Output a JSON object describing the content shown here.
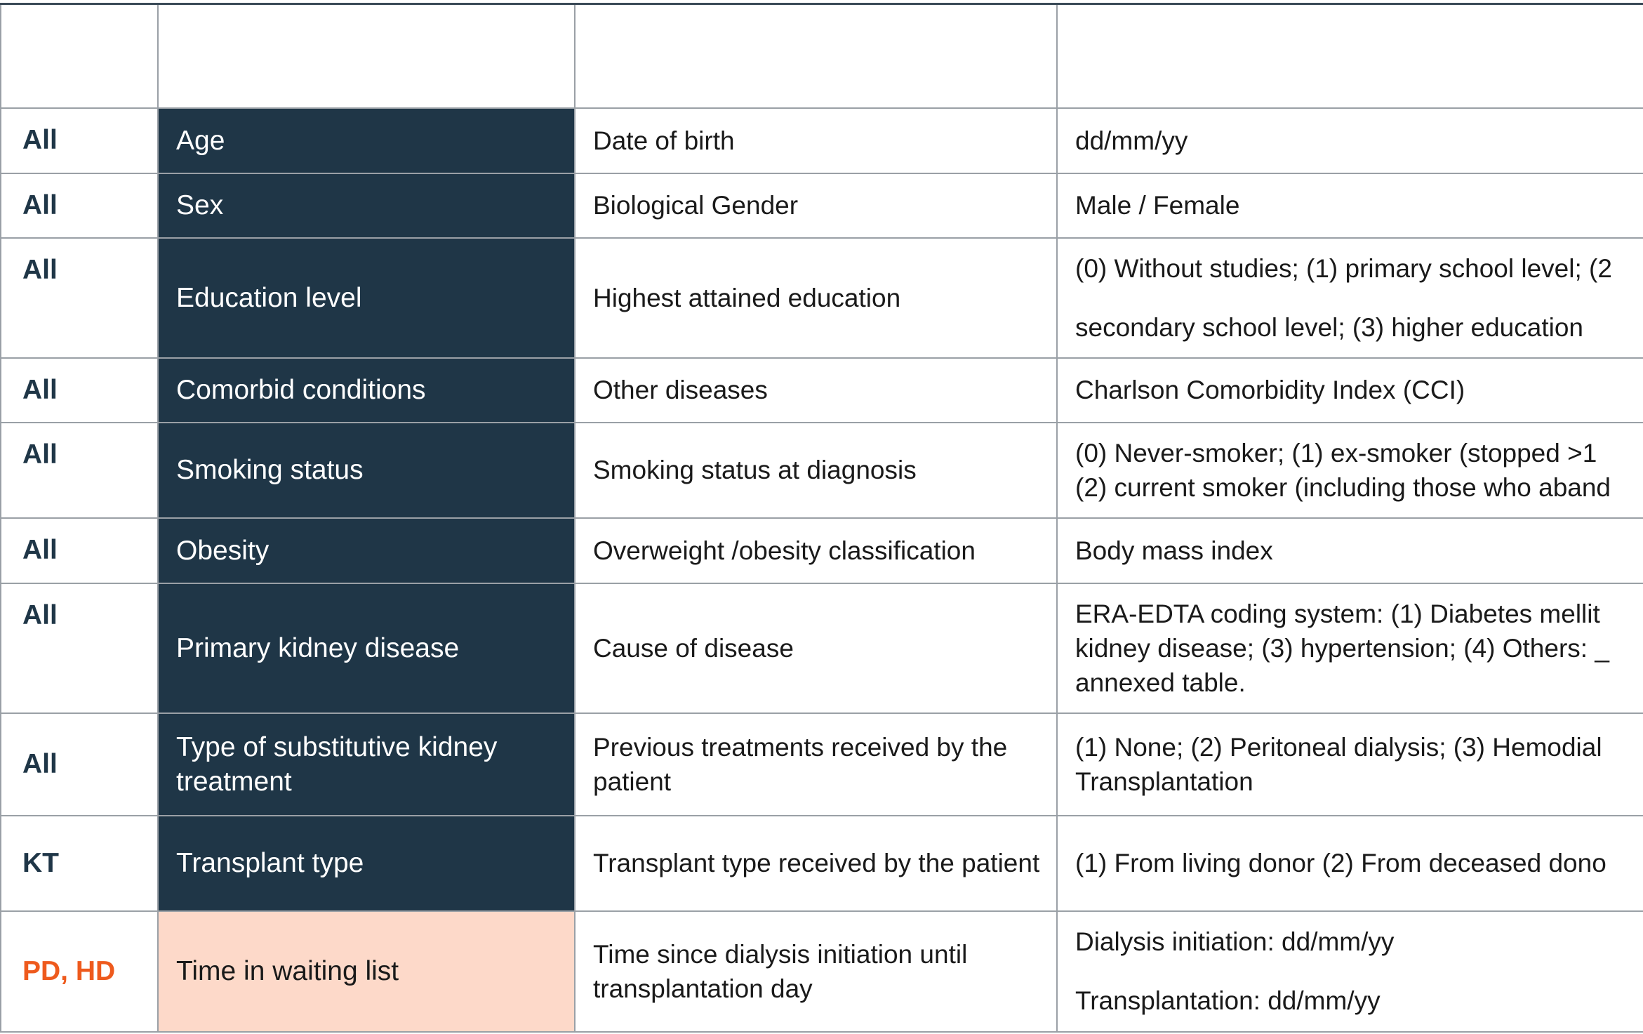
{
  "table": {
    "rows": [
      {
        "group": "All",
        "variable": "Age",
        "definition": "Date of birth",
        "values": [
          [
            "dd/mm/yy"
          ]
        ]
      },
      {
        "group": "All",
        "variable": "Sex",
        "definition": "Biological Gender",
        "values": [
          [
            "Male / Female"
          ]
        ]
      },
      {
        "group": "All",
        "variable": "Education level",
        "definition": "Highest attained education",
        "values": [
          [
            "(0) Without studies; (1) primary school level; (2"
          ],
          [
            "secondary school level; (3) higher education"
          ]
        ]
      },
      {
        "group": "All",
        "variable": "Comorbid conditions",
        "definition": "Other diseases",
        "values": [
          [
            "Charlson Comorbidity Index (CCI)"
          ]
        ]
      },
      {
        "group": "All",
        "variable": "Smoking status",
        "definition": "Smoking status at diagnosis",
        "values": [
          [
            "(0) Never-smoker; (1) ex-smoker (stopped >1",
            "(2) current smoker (including those who aband"
          ]
        ]
      },
      {
        "group": "All",
        "variable": "Obesity",
        "definition": "Overweight /obesity classification",
        "values": [
          [
            "Body mass index"
          ]
        ]
      },
      {
        "group": "All",
        "variable": "Primary kidney disease",
        "definition": "Cause of disease",
        "values": [
          [
            "ERA-EDTA coding system: (1) Diabetes mellit",
            "kidney disease; (3) hypertension; (4) Others: _",
            "annexed table."
          ]
        ]
      },
      {
        "group": "All",
        "variable": "Type of substitutive kidney treatment",
        "definition": "Previous treatments received by the patient",
        "values": [
          [
            "(1) None; (2) Peritoneal dialysis; (3) Hemodial",
            "Transplantation"
          ]
        ]
      },
      {
        "group": "KT",
        "variable": "Transplant type",
        "definition": "Transplant type received by the patient",
        "values": [
          [
            "(1) From living donor (2) From deceased dono"
          ]
        ]
      },
      {
        "group": "PD, HD",
        "variable": "Time in waiting list",
        "definition": "Time since dialysis initiation until transplantation day",
        "values": [
          [
            "Dialysis initiation: dd/mm/yy"
          ],
          [
            "Transplantation: dd/mm/yy"
          ]
        ]
      }
    ]
  }
}
